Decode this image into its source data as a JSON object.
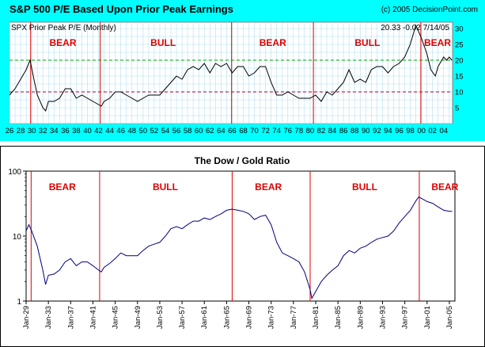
{
  "chart_data": [
    {
      "type": "line",
      "title": "S&P 500 P/E Based Upon Prior Peak Earnings",
      "copyright": "(c) 2005 DecisionPoint.com",
      "series_label": "SPX Prior Peak P/E (Monthly)",
      "readout": "20.33  -0.02  7/14/05",
      "x_tick_labels": [
        "26",
        "28",
        "30",
        "32",
        "34",
        "36",
        "38",
        "40",
        "42",
        "44",
        "46",
        "48",
        "50",
        "52",
        "54",
        "56",
        "58",
        "60",
        "62",
        "64",
        "66",
        "68",
        "70",
        "72",
        "74",
        "76",
        "78",
        "80",
        "82",
        "84",
        "86",
        "88",
        "90",
        "92",
        "94",
        "96",
        "98",
        "00",
        "02",
        "04"
      ],
      "xlim": [
        1926,
        2005.6
      ],
      "ylim": [
        0,
        32
      ],
      "y_ticks": [
        5,
        10,
        15,
        20,
        25,
        30
      ],
      "y_tick_labels": [
        "5",
        "10",
        "15",
        "20",
        "25",
        "30"
      ],
      "reference_lines": [
        {
          "value": 20,
          "color": "#00aa00"
        },
        {
          "value": 10,
          "color": "#aa0044"
        }
      ],
      "phase_lines": [
        1929.8,
        1942.3,
        1965.9,
        1980.6,
        1999.9
      ],
      "phase_labels": [
        {
          "text": "BEAR",
          "x": 1935.6
        },
        {
          "text": "BULL",
          "x": 1953.6
        },
        {
          "text": "BEAR",
          "x": 1973.3
        },
        {
          "text": "BULL",
          "x": 1990.3
        },
        {
          "text": "BEAR",
          "x": 2002.9
        }
      ],
      "series": [
        {
          "name": "SPX Prior Peak P/E",
          "x": [
            1926,
            1927,
            1928,
            1929,
            1929.7,
            1930.5,
            1931,
            1932,
            1932.5,
            1933,
            1934,
            1935,
            1936,
            1937,
            1938,
            1939,
            1940,
            1941,
            1942,
            1942.5,
            1943,
            1944,
            1945,
            1946,
            1947,
            1948,
            1949,
            1950,
            1951,
            1952,
            1953,
            1954,
            1955,
            1956,
            1957,
            1958,
            1959,
            1960,
            1961,
            1962,
            1963,
            1964,
            1965,
            1966,
            1967,
            1968,
            1969,
            1970,
            1971,
            1972,
            1973,
            1974,
            1975,
            1976,
            1977,
            1978,
            1979,
            1980,
            1981,
            1982,
            1983,
            1984,
            1985,
            1986,
            1987,
            1988,
            1989,
            1990,
            1991,
            1992,
            1993,
            1994,
            1995,
            1996,
            1997,
            1998,
            1999,
            2000,
            2001,
            2001.7,
            2002.5,
            2003,
            2004,
            2004.5,
            2005,
            2005.5
          ],
          "values": [
            9,
            11,
            14,
            17,
            20,
            13,
            9,
            5,
            4,
            7,
            7,
            8,
            11,
            11,
            8,
            9,
            8,
            7,
            6,
            5.5,
            7,
            8,
            10,
            10,
            9,
            8,
            7,
            8,
            9,
            9,
            9,
            11,
            13,
            15,
            14,
            17,
            18,
            17,
            19,
            16,
            19,
            18,
            19,
            16,
            18,
            18,
            15,
            16,
            18,
            18,
            13,
            9,
            9,
            10,
            9,
            8,
            8,
            8,
            9,
            7,
            10,
            9,
            11,
            13,
            17,
            13,
            14,
            13,
            17,
            18,
            18,
            16,
            18,
            19,
            21,
            25,
            31,
            27,
            22,
            17,
            15,
            18,
            21,
            20,
            21,
            20
          ]
        }
      ]
    },
    {
      "type": "line",
      "title": "The Dow / Gold Ratio",
      "yscale": "log",
      "ylim": [
        1,
        100
      ],
      "y_tick_labels": [
        "1",
        "10",
        "100"
      ],
      "y_ticks": [
        1,
        10,
        100
      ],
      "xlim": [
        1929,
        2006
      ],
      "x_tick_labels": [
        "Jan-29",
        "Jan-33",
        "Jan-37",
        "Jan-41",
        "Jan-45",
        "Jan-49",
        "Jan-53",
        "Jan-57",
        "Jan-61",
        "Jan-65",
        "Jan-69",
        "Jan-73",
        "Jan-77",
        "Jan-81",
        "Jan-85",
        "Jan-89",
        "Jan-93",
        "Jan-97",
        "Jan-01",
        "Jan-05"
      ],
      "x_tick_values": [
        1929,
        1933,
        1937,
        1941,
        1945,
        1949,
        1953,
        1957,
        1961,
        1965,
        1969,
        1973,
        1977,
        1981,
        1985,
        1989,
        1993,
        1997,
        2001,
        2005
      ],
      "phase_lines": [
        1929.9,
        1942.2,
        1966.0,
        1980.0,
        1999.6
      ],
      "phase_labels": [
        {
          "text": "BEAR",
          "x": 1935.5
        },
        {
          "text": "BULL",
          "x": 1954.0
        },
        {
          "text": "BEAR",
          "x": 1972.5
        },
        {
          "text": "BULL",
          "x": 1989.8
        },
        {
          "text": "BEAR",
          "x": 2004.2
        }
      ],
      "series": [
        {
          "name": "Dow / Gold Ratio",
          "x": [
            1929,
            1929.5,
            1930,
            1931,
            1932,
            1932.5,
            1933,
            1934,
            1935,
            1936,
            1937,
            1938,
            1939,
            1940,
            1941,
            1942,
            1942.5,
            1943,
            1944,
            1945,
            1946,
            1947,
            1948,
            1949,
            1950,
            1951,
            1952,
            1953,
            1954,
            1955,
            1956,
            1957,
            1958,
            1959,
            1960,
            1961,
            1962,
            1963,
            1964,
            1965,
            1966,
            1967,
            1968,
            1969,
            1970,
            1971,
            1972,
            1973,
            1974,
            1975,
            1976,
            1977,
            1978,
            1979,
            1980,
            1980.3,
            1981,
            1982,
            1983,
            1984,
            1985,
            1986,
            1987,
            1988,
            1989,
            1990,
            1991,
            1992,
            1993,
            1994,
            1995,
            1996,
            1997,
            1998,
            1999,
            1999.5,
            2000,
            2001,
            2002,
            2003,
            2004,
            2005,
            2005.5
          ],
          "values": [
            12,
            15,
            12,
            7,
            3,
            1.8,
            2.5,
            2.6,
            3,
            4,
            4.5,
            3.5,
            4,
            4,
            3.5,
            3,
            2.8,
            3.3,
            3.8,
            4.5,
            5.5,
            5,
            5,
            5,
            6,
            7,
            7.5,
            8,
            10,
            13,
            14,
            13,
            15,
            17,
            17,
            19,
            18,
            20,
            22,
            25,
            26,
            25,
            24,
            22,
            18,
            20,
            21,
            15,
            8,
            5.5,
            5,
            4.5,
            4,
            2.8,
            1.5,
            1.1,
            1.4,
            2,
            2.5,
            3,
            3.5,
            5,
            6,
            5.5,
            6.5,
            7,
            8,
            9,
            9.5,
            10,
            12,
            16,
            20,
            25,
            35,
            40,
            38,
            34,
            32,
            28,
            25,
            24,
            24
          ]
        }
      ]
    }
  ]
}
